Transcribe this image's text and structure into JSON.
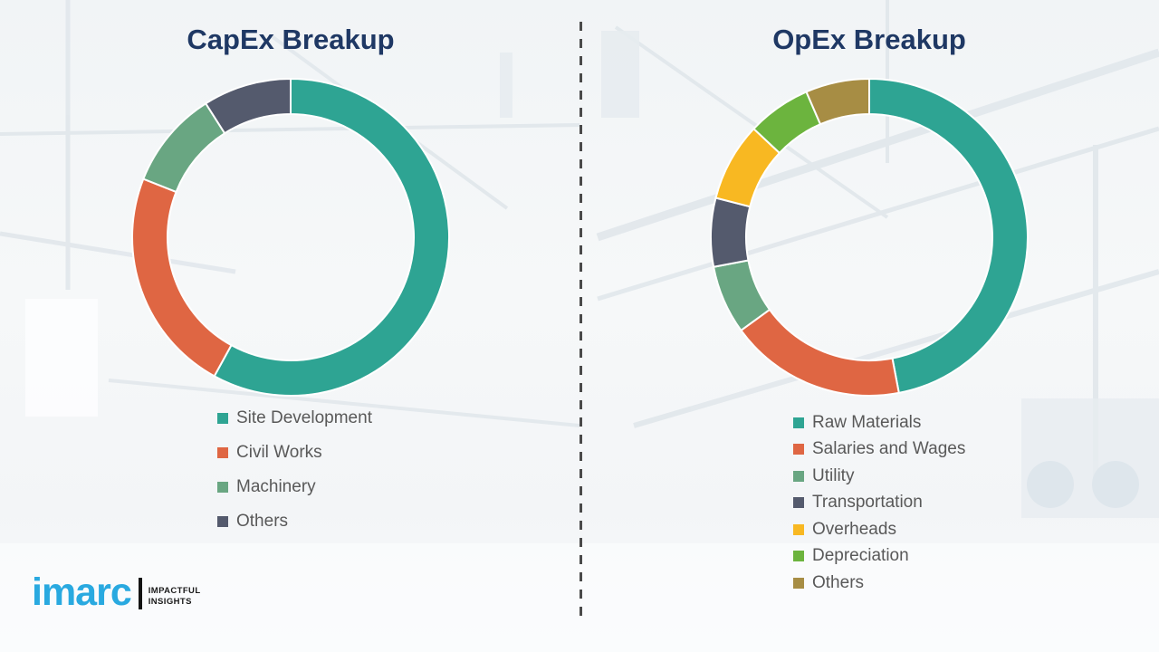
{
  "palette": {
    "title_navy": "#1F3864",
    "legend_text": "#595959",
    "divider_gray": "#4A4A4A",
    "logo_blue": "#29A9E0",
    "background": "#F4F6F7"
  },
  "divider": {
    "style": "dashed-vertical"
  },
  "logo": {
    "brand": "imarc",
    "tagline_line1": "IMPACTFUL",
    "tagline_line2": "INSIGHTS"
  },
  "chart_data": [
    {
      "type": "pie",
      "subtype": "donut",
      "title": "CapEx Breakup",
      "labels": [
        "Site Development",
        "Civil Works",
        "Machinery",
        "Others"
      ],
      "values": [
        58,
        23,
        10,
        9
      ],
      "colors": [
        "#2EA493",
        "#DF6643",
        "#69A682",
        "#545A6D"
      ],
      "start_angle_deg": 0,
      "direction": "clockwise",
      "units": "percent-estimated",
      "legend_position": "below",
      "data_labels": false
    },
    {
      "type": "pie",
      "subtype": "donut",
      "title": "OpEx Breakup",
      "labels": [
        "Raw Materials",
        "Salaries and Wages",
        "Utility",
        "Transportation",
        "Overheads",
        "Depreciation",
        "Others"
      ],
      "values": [
        47,
        18,
        7,
        7,
        8,
        6.5,
        6.5
      ],
      "colors": [
        "#2EA493",
        "#DF6643",
        "#69A682",
        "#545A6D",
        "#F8B822",
        "#6CB43E",
        "#A78D44"
      ],
      "start_angle_deg": 0,
      "direction": "clockwise",
      "units": "percent-estimated",
      "legend_position": "below",
      "data_labels": false
    }
  ]
}
